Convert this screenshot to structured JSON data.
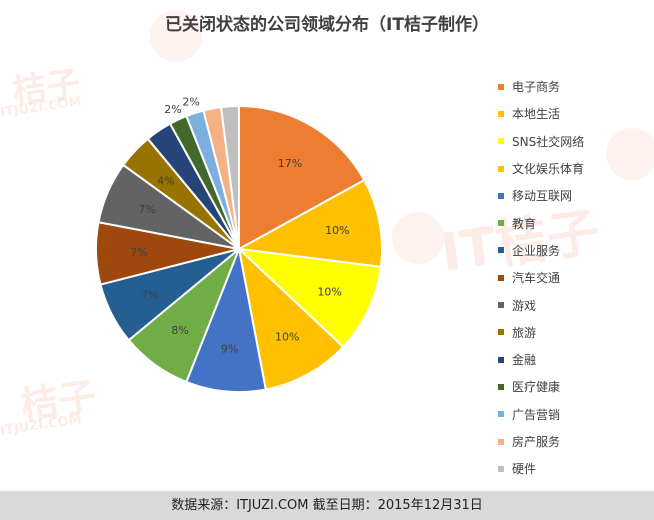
{
  "chart_data": {
    "type": "pie",
    "title": "已关闭状态的公司领域分布（IT桔子制作）",
    "slices": [
      {
        "label": "电子商务",
        "value": 17,
        "color": "#ed7d31",
        "data_label": "17%"
      },
      {
        "label": "本地生活",
        "value": 10,
        "color": "#ffc000",
        "data_label": "10%"
      },
      {
        "label": "SNS社交网络",
        "value": 10,
        "color": "#ffff00",
        "data_label": "10%"
      },
      {
        "label": "文化娱乐体育",
        "value": 10,
        "color": "#ffc000",
        "data_label": "10%"
      },
      {
        "label": "移动互联网",
        "value": 9,
        "color": "#4472c4",
        "data_label": "9%"
      },
      {
        "label": "教育",
        "value": 8,
        "color": "#70ad47",
        "data_label": "8%"
      },
      {
        "label": "企业服务",
        "value": 7,
        "color": "#255e91",
        "data_label": "7%"
      },
      {
        "label": "汽车交通",
        "value": 7,
        "color": "#9e480e",
        "data_label": "7%"
      },
      {
        "label": "游戏",
        "value": 7,
        "color": "#636363",
        "data_label": "7%"
      },
      {
        "label": "旅游",
        "value": 4,
        "color": "#997300",
        "data_label": "4%"
      },
      {
        "label": "金融",
        "value": 3,
        "color": "#264478",
        "data_label": ""
      },
      {
        "label": "医疗健康",
        "value": 2,
        "color": "#43682b",
        "data_label": "2%"
      },
      {
        "label": "广告营销",
        "value": 2,
        "color": "#7cafdd",
        "data_label": "2%"
      },
      {
        "label": "房产服务",
        "value": 2,
        "color": "#f4b183",
        "data_label": ""
      },
      {
        "label": "硬件",
        "value": 2,
        "color": "#bfbfbf",
        "data_label": ""
      }
    ],
    "legend_position": "right"
  },
  "footer": {
    "text": "数据来源：ITJUZI.COM  截至日期：2015年12月31日"
  },
  "watermark": {
    "logo_text": "桔子",
    "domain_text": "ITJUZI.COM",
    "brand_text": "IT桔子"
  }
}
